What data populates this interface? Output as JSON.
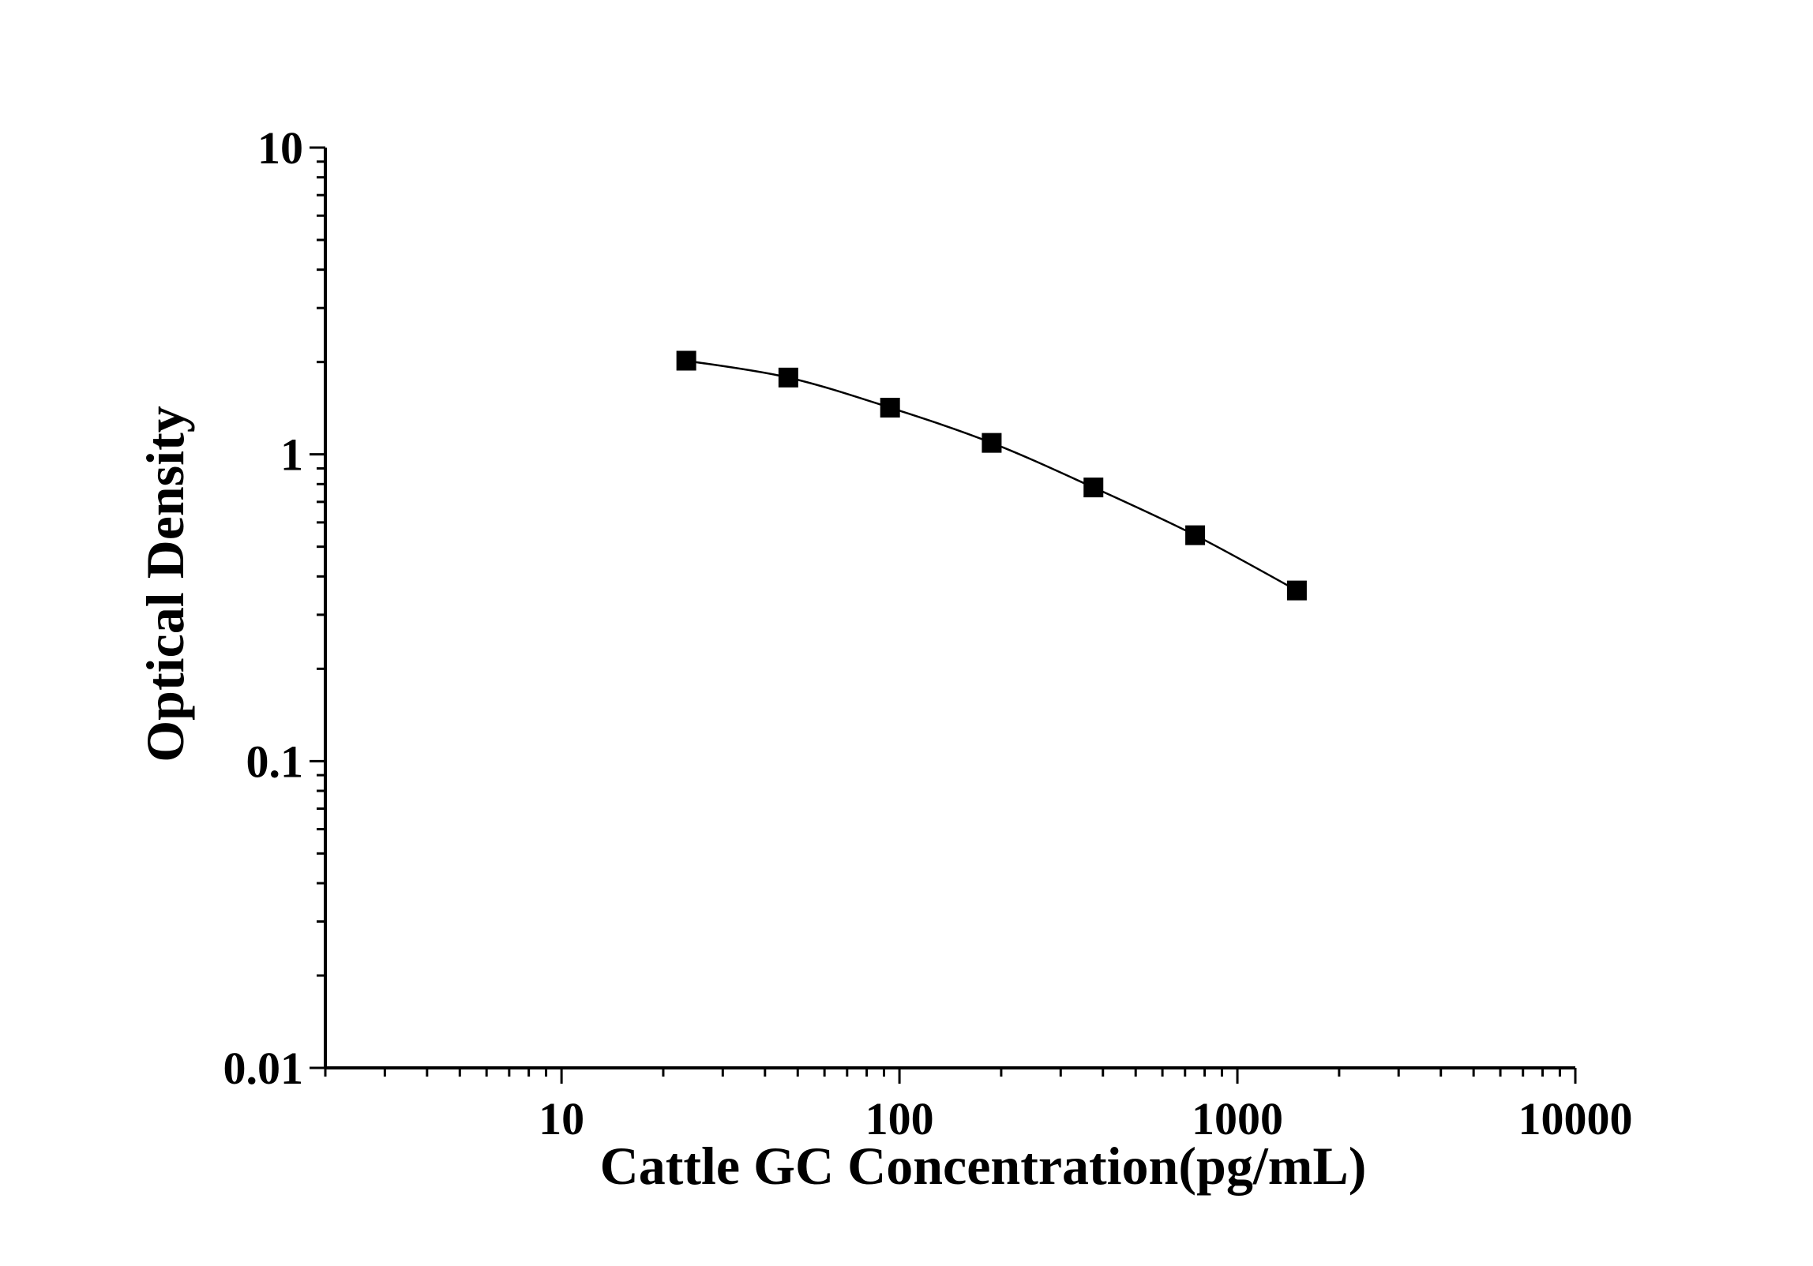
{
  "chart_data": {
    "type": "scatter",
    "title": "",
    "xlabel": "Cattle GC Concentration(pg/mL)",
    "ylabel": "Optical Density",
    "x_scale": "log",
    "y_scale": "log",
    "xlim": [
      2,
      10000
    ],
    "ylim": [
      0.01,
      10
    ],
    "x_ticks": [
      {
        "value": 10,
        "label": "10"
      },
      {
        "value": 100,
        "label": "100"
      },
      {
        "value": 1000,
        "label": "1000"
      },
      {
        "value": 10000,
        "label": "10000"
      }
    ],
    "y_ticks": [
      {
        "value": 0.01,
        "label": "0.01"
      },
      {
        "value": 0.1,
        "label": "0.1"
      },
      {
        "value": 1,
        "label": "1"
      },
      {
        "value": 10,
        "label": "10"
      }
    ],
    "grid": false,
    "legend": false,
    "marker": "square",
    "fit_line": true,
    "series": [
      {
        "x": [
          23.4,
          46.9,
          93.8,
          187.5,
          375,
          750,
          1500
        ],
        "y": [
          2.02,
          1.78,
          1.42,
          1.09,
          0.78,
          0.545,
          0.36
        ]
      }
    ]
  }
}
